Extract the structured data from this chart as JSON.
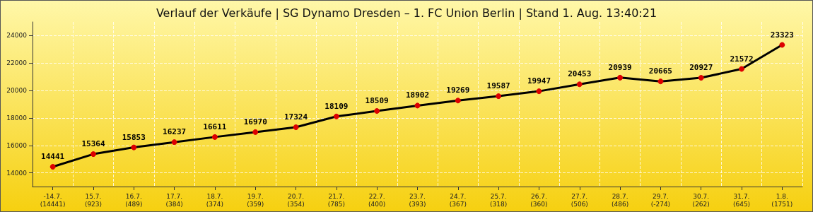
{
  "chart_data": {
    "type": "line",
    "title": "Verlauf der Verkäufe | SG Dynamo Dresden – 1. FC Union Berlin | Stand 1. Aug. 13:40:21",
    "categories": [
      "-14.7.\n(14441)",
      "15.7.\n(923)",
      "16.7.\n(489)",
      "17.7.\n(384)",
      "18.7.\n(374)",
      "19.7.\n(359)",
      "20.7.\n(354)",
      "21.7.\n(785)",
      "22.7.\n(400)",
      "23.7.\n(393)",
      "24.7.\n(367)",
      "25.7.\n(318)",
      "26.7.\n(360)",
      "27.7.\n(506)",
      "28.7.\n(486)",
      "29.7.\n(-274)",
      "30.7.\n(262)",
      "31.7.\n(645)",
      "1.8.\n(1751)"
    ],
    "series": [
      {
        "color": "#dd0000",
        "values": [
          14441,
          15364,
          15853,
          16237,
          16611,
          16970,
          17324,
          18109,
          18509,
          18902,
          19269,
          19587,
          19947,
          20453,
          20939,
          20665,
          20927,
          21572,
          23323
        ]
      }
    ],
    "ylim": [
      13000,
      25000
    ],
    "yticks": [
      14000,
      16000,
      18000,
      20000,
      22000,
      24000
    ],
    "grid": true,
    "marker": "circle",
    "line_style": "solid",
    "data_labels": true
  }
}
